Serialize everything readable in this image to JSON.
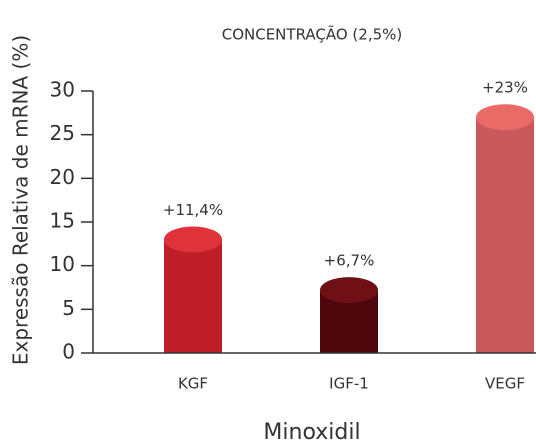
{
  "chart_data": {
    "type": "bar",
    "title": "CONCENTRAÇÃO (2,5%)",
    "x_label": "Minoxidil",
    "y_label": "Expressão Relativa de mRNA (%)",
    "categories": [
      "KGF",
      "IGF-1",
      "VEGF"
    ],
    "values": [
      13,
      7.2,
      27
    ],
    "annotations": [
      "+11,4%",
      "+6,7%",
      "+23%"
    ],
    "colors": [
      "#bf1f28",
      "#4d060c",
      "#c85a5d"
    ],
    "top_colors": [
      "#e0323a",
      "#6e1016",
      "#ea6a68"
    ],
    "ylim": [
      0,
      30
    ],
    "yticks": [
      0,
      5,
      10,
      15,
      20,
      25,
      30
    ]
  }
}
